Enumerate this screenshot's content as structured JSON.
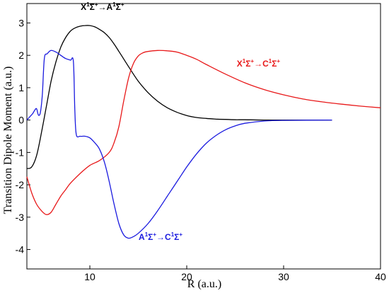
{
  "chart_data": {
    "type": "line",
    "xlabel": "R (a.u.)",
    "ylabel": "Transition Dipole Moment (a.u.)",
    "xlim": [
      3.5,
      40
    ],
    "ylim": [
      -4.6,
      3.6
    ],
    "xticks": [
      10,
      20,
      30,
      40
    ],
    "yticks": [
      -4,
      -3,
      -2,
      -1,
      0,
      1,
      2,
      3
    ],
    "grid": false,
    "series": [
      {
        "name": "X¹Σ⁺→A¹Σ⁺",
        "color": "#000000",
        "label_parts": [
          "X",
          "1",
          "Σ",
          "+",
          "→A",
          "1",
          "Σ",
          "+"
        ],
        "x": [
          3.5,
          4.0,
          4.5,
          5.0,
          5.5,
          6.0,
          6.5,
          7.0,
          7.5,
          8.0,
          8.5,
          9.0,
          9.5,
          10.0,
          10.5,
          11.0,
          11.5,
          12.0,
          12.5,
          13.0,
          14.0,
          15.0,
          16.0,
          17.0,
          18.0,
          19.0,
          20.0,
          21.0,
          22.0,
          23.0,
          24.0,
          25.0,
          26.0,
          28.0,
          30.0,
          35.0
        ],
        "y": [
          -1.5,
          -1.45,
          -1.1,
          -0.4,
          0.4,
          1.2,
          1.8,
          2.25,
          2.55,
          2.75,
          2.85,
          2.9,
          2.92,
          2.92,
          2.88,
          2.8,
          2.7,
          2.55,
          2.35,
          2.12,
          1.65,
          1.2,
          0.85,
          0.58,
          0.38,
          0.24,
          0.14,
          0.08,
          0.05,
          0.03,
          0.02,
          0.01,
          0.01,
          0.0,
          0.0,
          0.0
        ]
      },
      {
        "name": "X¹Σ⁺→C¹Σ⁺",
        "color": "#e8191a",
        "label_parts": [
          "X",
          "1",
          "Σ",
          "+",
          "→C",
          "1",
          "Σ",
          "+"
        ],
        "x": [
          3.5,
          4.0,
          4.5,
          5.0,
          5.5,
          6.0,
          6.5,
          7.0,
          7.5,
          8.0,
          9.0,
          10.0,
          11.0,
          12.0,
          12.5,
          13.0,
          13.5,
          14.0,
          14.5,
          15.0,
          15.5,
          16.0,
          17.0,
          18.0,
          19.0,
          20.0,
          21.0,
          22.0,
          24.0,
          26.0,
          28.0,
          30.0,
          32.0,
          34.0,
          36.0,
          38.0,
          40.0
        ],
        "y": [
          -1.75,
          -2.25,
          -2.6,
          -2.8,
          -2.92,
          -2.85,
          -2.6,
          -2.35,
          -2.15,
          -1.95,
          -1.65,
          -1.4,
          -1.25,
          -1.0,
          -0.7,
          -0.2,
          0.6,
          1.3,
          1.75,
          1.98,
          2.08,
          2.12,
          2.15,
          2.14,
          2.1,
          2.0,
          1.88,
          1.72,
          1.42,
          1.15,
          0.94,
          0.78,
          0.65,
          0.56,
          0.49,
          0.43,
          0.38
        ]
      },
      {
        "name": "A¹Σ⁺→C¹Σ⁺",
        "color": "#1a1adf",
        "label_parts": [
          "A",
          "1",
          "Σ",
          "+",
          "→C",
          "1",
          "Σ",
          "+"
        ],
        "x": [
          3.5,
          3.8,
          4.1,
          4.3,
          4.5,
          4.7,
          4.9,
          5.1,
          5.3,
          5.6,
          6.0,
          6.5,
          7.0,
          7.5,
          8.0,
          8.3,
          8.45,
          8.6,
          9.0,
          9.5,
          10.0,
          10.5,
          11.0,
          11.5,
          12.0,
          12.5,
          13.0,
          13.5,
          14.0,
          14.5,
          15.0,
          16.0,
          17.0,
          18.0,
          19.0,
          20.0,
          21.0,
          22.0,
          23.0,
          24.0,
          25.0,
          26.0,
          28.0,
          30.0,
          35.0
        ],
        "y": [
          0.0,
          0.1,
          0.2,
          0.3,
          0.35,
          0.15,
          0.25,
          0.8,
          1.9,
          2.05,
          2.15,
          2.1,
          2.0,
          1.9,
          1.85,
          1.8,
          0.3,
          -0.45,
          -0.5,
          -0.5,
          -0.55,
          -0.7,
          -0.9,
          -1.3,
          -1.9,
          -2.6,
          -3.2,
          -3.55,
          -3.65,
          -3.6,
          -3.5,
          -3.2,
          -2.8,
          -2.35,
          -1.9,
          -1.45,
          -1.05,
          -0.72,
          -0.48,
          -0.3,
          -0.18,
          -0.1,
          -0.03,
          -0.01,
          0.0
        ]
      }
    ],
    "annotations": [
      {
        "series": 0,
        "x": 11.3,
        "y": 3.4
      },
      {
        "series": 1,
        "x": 27.4,
        "y": 1.65
      },
      {
        "series": 2,
        "x": 17.3,
        "y": -3.7
      }
    ]
  }
}
